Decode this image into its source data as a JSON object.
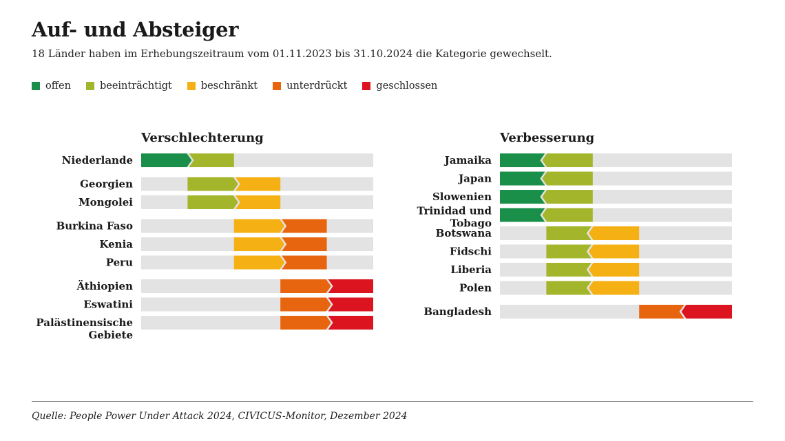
{
  "title": "Auf- und Absteiger",
  "subtitle": "18 Länder haben im Erhebungszeitraum vom 01.11.2023 bis 31.10.2024 die Kategorie gewechselt.",
  "source": "Quelle: People Power Under Attack 2024, CIVICUS-Monitor, Dezember 2024",
  "legend": [
    {
      "label": "offen",
      "color": "#1a8f4a"
    },
    {
      "label": "beeinträchtigt",
      "color": "#a3b52a"
    },
    {
      "label": "beschränkt",
      "color": "#f5b014"
    },
    {
      "label": "unterdrückt",
      "color": "#e8650f"
    },
    {
      "label": "geschlossen",
      "color": "#dc1420"
    }
  ],
  "chart_data": {
    "type": "category-change",
    "category_order": [
      "offen",
      "beeinträchtigt",
      "beschränkt",
      "unterdrückt",
      "geschlossen"
    ],
    "background_color": "#e3e3e3",
    "panels": [
      {
        "title": "Verschlechterung",
        "direction": "down",
        "groups": [
          [
            {
              "country": [
                "Niederlande"
              ],
              "from": "offen",
              "to": "beeinträchtigt"
            }
          ],
          [
            {
              "country": [
                "Georgien"
              ],
              "from": "beeinträchtigt",
              "to": "beschränkt"
            },
            {
              "country": [
                "Mongolei"
              ],
              "from": "beeinträchtigt",
              "to": "beschränkt"
            }
          ],
          [
            {
              "country": [
                "Burkina Faso"
              ],
              "from": "beschränkt",
              "to": "unterdrückt"
            },
            {
              "country": [
                "Kenia"
              ],
              "from": "beschränkt",
              "to": "unterdrückt"
            },
            {
              "country": [
                "Peru"
              ],
              "from": "beschränkt",
              "to": "unterdrückt"
            }
          ],
          [
            {
              "country": [
                "Äthiopien"
              ],
              "from": "unterdrückt",
              "to": "geschlossen"
            },
            {
              "country": [
                "Eswatini"
              ],
              "from": "unterdrückt",
              "to": "geschlossen"
            },
            {
              "country": [
                "Palästinensische",
                "Gebiete"
              ],
              "from": "unterdrückt",
              "to": "geschlossen"
            }
          ]
        ]
      },
      {
        "title": "Verbesserung",
        "direction": "up",
        "groups": [
          [
            {
              "country": [
                "Jamaika"
              ],
              "from": "beeinträchtigt",
              "to": "offen"
            },
            {
              "country": [
                "Japan"
              ],
              "from": "beeinträchtigt",
              "to": "offen"
            },
            {
              "country": [
                "Slowenien"
              ],
              "from": "beeinträchtigt",
              "to": "offen"
            },
            {
              "country": [
                "Trinidad und",
                "Tobago"
              ],
              "from": "beeinträchtigt",
              "to": "offen"
            },
            {
              "country": [
                "Botswana"
              ],
              "from": "beschränkt",
              "to": "beeinträchtigt"
            },
            {
              "country": [
                "Fidschi"
              ],
              "from": "beschränkt",
              "to": "beeinträchtigt"
            },
            {
              "country": [
                "Liberia"
              ],
              "from": "beschränkt",
              "to": "beeinträchtigt"
            },
            {
              "country": [
                "Polen"
              ],
              "from": "beschränkt",
              "to": "beeinträchtigt"
            }
          ],
          [
            {
              "country": [
                "Bangladesh"
              ],
              "from": "geschlossen",
              "to": "unterdrückt"
            }
          ]
        ]
      }
    ]
  }
}
